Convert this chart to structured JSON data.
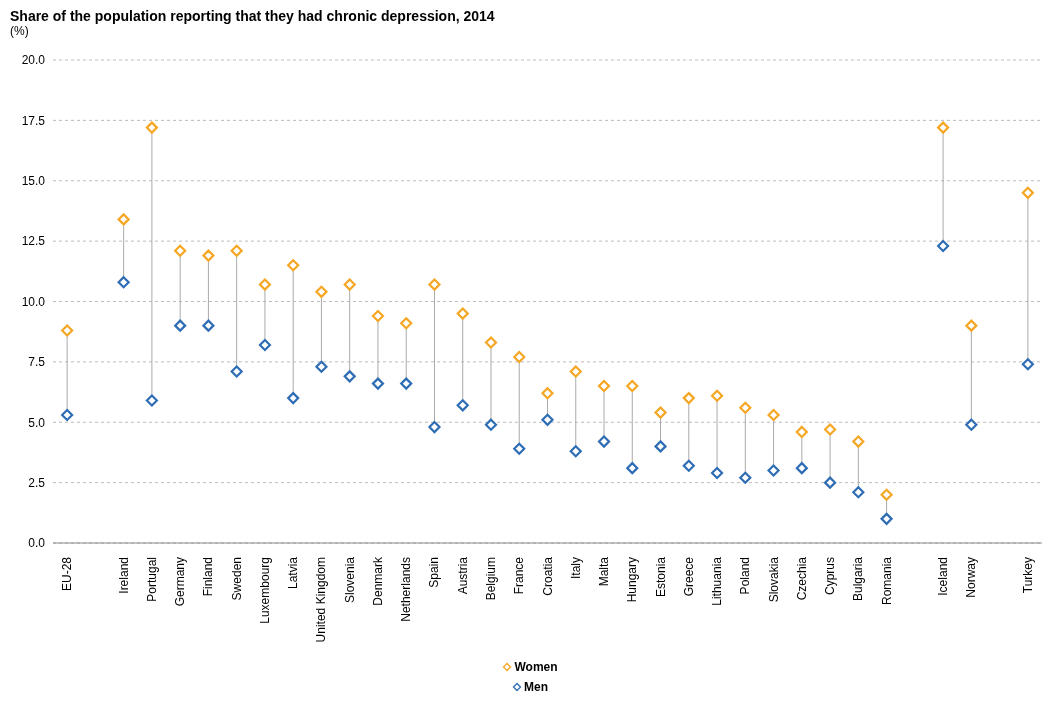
{
  "chart_data": {
    "type": "scatter",
    "title": "Share of the population reporting that they had chronic depression, 2014",
    "ylabel": "(%)",
    "categories": [
      "EU-28",
      null,
      "Ireland",
      "Portugal",
      "Germany",
      "Finland",
      "Sweden",
      "Luxembourg",
      "Latvia",
      "United Kingdom",
      "Slovenia",
      "Denmark",
      "Netherlands",
      "Spain",
      "Austria",
      "Belgium",
      "France",
      "Croatia",
      "Italy",
      "Malta",
      "Hungary",
      "Estonia",
      "Greece",
      "Lithuania",
      "Poland",
      "Slovakia",
      "Czechia",
      "Cyprus",
      "Bulgaria",
      "Romania",
      null,
      "Iceland",
      "Norway",
      null,
      "Turkey"
    ],
    "series": [
      {
        "name": "Women",
        "color": "#f5a623",
        "values": [
          8.8,
          null,
          13.4,
          17.2,
          12.1,
          11.9,
          12.1,
          10.7,
          11.5,
          10.4,
          10.7,
          9.4,
          9.1,
          10.7,
          9.5,
          8.3,
          7.7,
          6.2,
          7.1,
          6.5,
          6.5,
          5.4,
          6.0,
          6.1,
          5.6,
          5.3,
          4.6,
          4.7,
          4.2,
          2.0,
          null,
          17.2,
          9.0,
          null,
          14.5
        ]
      },
      {
        "name": "Men",
        "color": "#2e6db4",
        "values": [
          5.3,
          null,
          10.8,
          5.9,
          9.0,
          9.0,
          7.1,
          8.2,
          6.0,
          7.3,
          6.9,
          6.6,
          6.6,
          4.8,
          5.7,
          4.9,
          3.9,
          5.1,
          3.8,
          4.2,
          3.1,
          4.0,
          3.2,
          2.9,
          2.7,
          3.0,
          3.1,
          2.5,
          2.1,
          1.0,
          null,
          12.3,
          4.9,
          null,
          7.4
        ]
      }
    ],
    "ylim": [
      0,
      20
    ],
    "yticks": [
      {
        "value": 0,
        "label": "0.0"
      },
      {
        "value": 2.5,
        "label": "2.5"
      },
      {
        "value": 5,
        "label": "5.0"
      },
      {
        "value": 7.5,
        "label": "7.5"
      },
      {
        "value": 10,
        "label": "10.0"
      },
      {
        "value": 12.5,
        "label": "12.5"
      },
      {
        "value": 15,
        "label": "15.0"
      },
      {
        "value": 17.5,
        "label": "17.5"
      },
      {
        "value": 20,
        "label": "20.0"
      }
    ],
    "grid": "y",
    "legend": "bottom",
    "marker": "diamond"
  }
}
